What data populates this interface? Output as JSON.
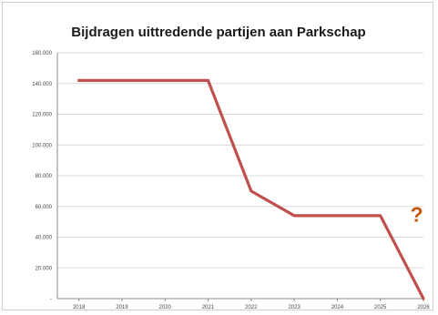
{
  "chart_data": {
    "type": "line",
    "title": "Bijdragen uittredende partijen aan Parkschap",
    "xlabel": "",
    "ylabel": "",
    "categories": [
      "2018",
      "2019",
      "2020",
      "2021",
      "2022",
      "2023",
      "2024",
      "2025",
      "2026"
    ],
    "y_tick_labels": [
      "-",
      "20.000",
      "40.000",
      "60.000",
      "80.000",
      "100.000",
      "120.000",
      "140.000",
      "160.000"
    ],
    "ylim": [
      0,
      160000
    ],
    "grid": true,
    "legend": "none",
    "series": [
      {
        "values": [
          142000,
          142000,
          142000,
          142000,
          70000,
          54000,
          54000,
          54000,
          0
        ],
        "color": "#c0504d"
      }
    ],
    "annotations": [
      {
        "text": "?",
        "x": "2025",
        "y": 50000,
        "color": "#c0580a"
      }
    ]
  }
}
